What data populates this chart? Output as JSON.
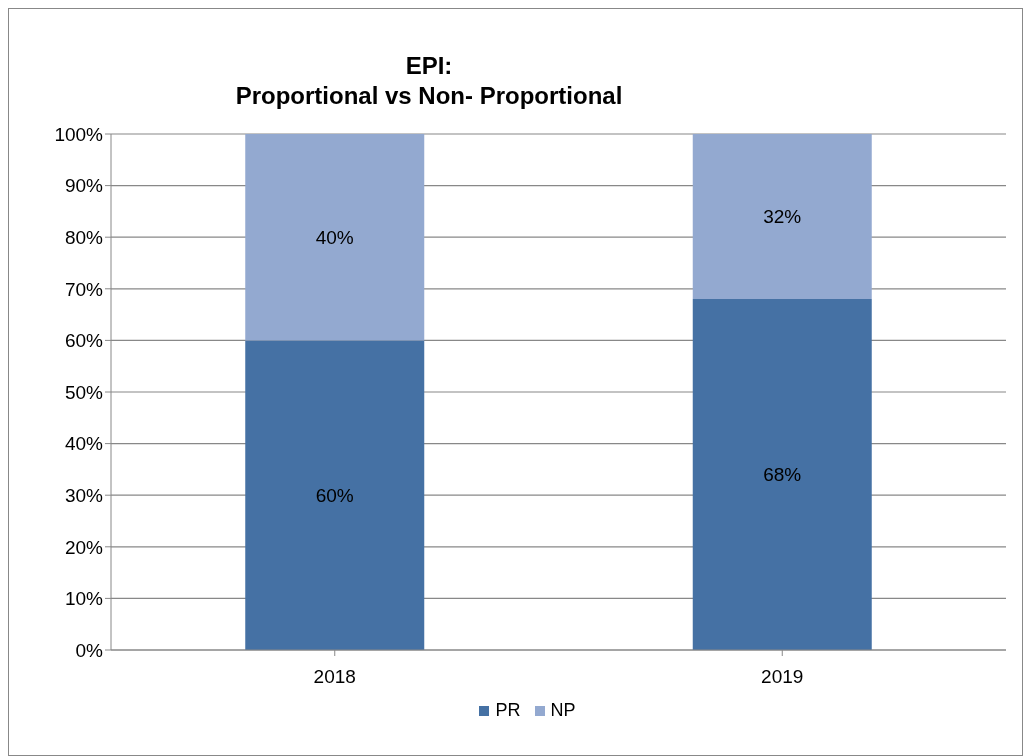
{
  "chart_data": {
    "type": "bar",
    "title": "EPI:\nProportional vs Non- Proportional",
    "categories": [
      "2018",
      "2019"
    ],
    "stacked": true,
    "series": [
      {
        "name": "PR",
        "color": "#4571a4",
        "values": [
          60,
          68
        ],
        "value_labels": [
          "60%",
          "68%"
        ]
      },
      {
        "name": "NP",
        "color": "#93a9d0",
        "values": [
          40,
          32
        ],
        "value_labels": [
          "40%",
          "32%"
        ]
      }
    ],
    "ylim": [
      0,
      100
    ],
    "yticks": [
      {
        "value": 0,
        "label": "0%"
      },
      {
        "value": 10,
        "label": "10%"
      },
      {
        "value": 20,
        "label": "20%"
      },
      {
        "value": 30,
        "label": "30%"
      },
      {
        "value": 40,
        "label": "40%"
      },
      {
        "value": 50,
        "label": "50%"
      },
      {
        "value": 60,
        "label": "60%"
      },
      {
        "value": 70,
        "label": "70%"
      },
      {
        "value": 80,
        "label": "80%"
      },
      {
        "value": 90,
        "label": "90%"
      },
      {
        "value": 100,
        "label": "100%"
      }
    ],
    "grid": "y",
    "legend": "bottom"
  }
}
